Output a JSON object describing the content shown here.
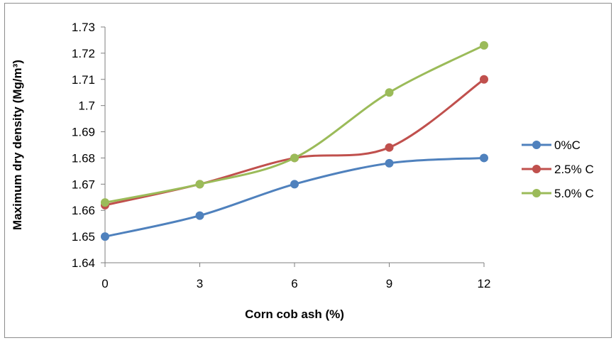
{
  "chart_data": {
    "type": "line",
    "title": "",
    "xlabel": "Corn cob ash (%)",
    "ylabel": "Maximum dry density (Mg/m³)",
    "x": [
      0,
      3,
      6,
      9,
      12
    ],
    "x_tick_labels": [
      "0",
      "3",
      "6",
      "9",
      "12"
    ],
    "ylim": [
      1.64,
      1.73
    ],
    "y_tick_labels": [
      "1.64",
      "1.65",
      "1.66",
      "1.67",
      "1.68",
      "1.69",
      "1.7",
      "1.71",
      "1.72",
      "1.73"
    ],
    "grid": false,
    "smoothed": true,
    "legend_position": "right",
    "series": [
      {
        "name": "0%C",
        "color": "#4f81bd",
        "values": [
          1.65,
          1.658,
          1.67,
          1.678,
          1.68
        ]
      },
      {
        "name": "2.5% C",
        "color": "#c0504d",
        "values": [
          1.662,
          1.67,
          1.68,
          1.684,
          1.71
        ]
      },
      {
        "name": "5.0% C",
        "color": "#9bbb59",
        "values": [
          1.663,
          1.67,
          1.68,
          1.705,
          1.723
        ]
      }
    ]
  }
}
